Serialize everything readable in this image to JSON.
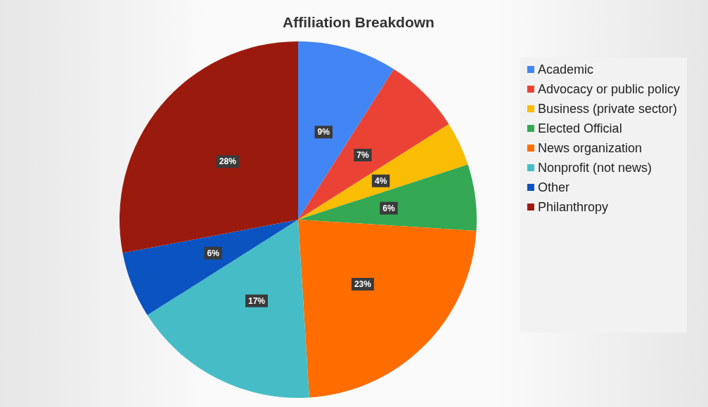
{
  "chart_data": {
    "type": "pie",
    "title": "Affiliation Breakdown",
    "categories": [
      "Academic",
      "Advocacy or public policy",
      "Business (private sector)",
      "Elected Official",
      "News organization",
      "Nonprofit (not news)",
      "Other",
      "Philanthropy"
    ],
    "values": [
      9,
      7,
      4,
      6,
      23,
      17,
      6,
      28
    ],
    "value_labels": [
      "9%",
      "7%",
      "4%",
      "6%",
      "23%",
      "17%",
      "6%",
      "28%"
    ],
    "colors": [
      "#4285f4",
      "#ea4335",
      "#fbbc04",
      "#34a853",
      "#ff6d01",
      "#46bdc6",
      "#0b53c1",
      "#9b1a0e"
    ],
    "legend": "right"
  }
}
